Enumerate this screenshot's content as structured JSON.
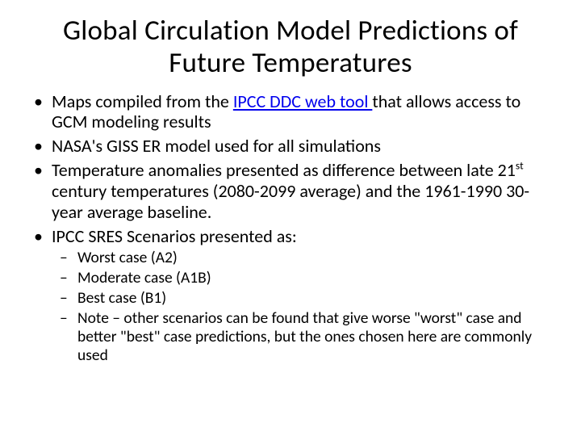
{
  "background_color": "#ffffff",
  "text_color": "#000000",
  "link_color": "#0000ee",
  "font_family": "Calibri",
  "title": "Global Circulation Model Predictions of Future Temperatures",
  "title_fontsize": 35,
  "body_fontsize": 22,
  "sub_fontsize": 19.5,
  "bullets": [
    {
      "pre": "Maps compiled from the ",
      "link": "IPCC DDC web tool ",
      "post": "that allows access to GCM modeling results"
    },
    {
      "text": "NASA's GISS ER model used for all simulations"
    },
    {
      "pre": "Temperature anomalies presented as difference between late 21",
      "sup": "st",
      "post": " century temperatures (2080-2099 average) and the 1961-1990 30-year average baseline."
    },
    {
      "text": "IPCC SRES Scenarios presented as:",
      "sub": [
        "Worst case (A2)",
        "Moderate case (A1B)",
        "Best case (B1)",
        "Note – other scenarios can be found that give worse \"worst\" case and better \"best\" case predictions, but the ones chosen here are commonly used"
      ]
    }
  ]
}
